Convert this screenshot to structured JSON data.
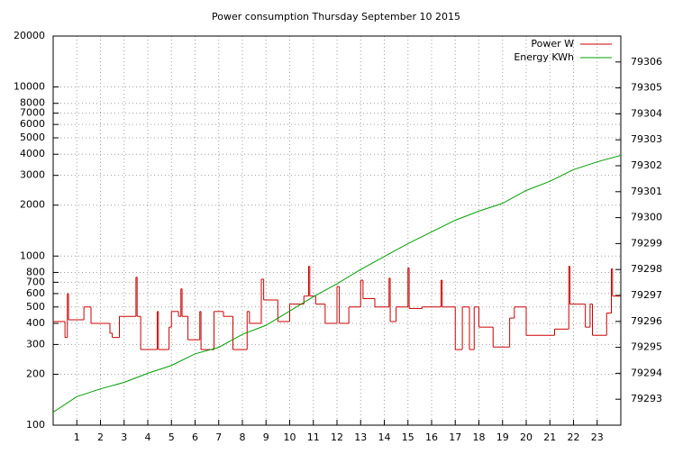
{
  "chart_data": {
    "type": "line",
    "title": "Power consumption Thursday September 10 2015",
    "xlim": [
      0,
      24
    ],
    "xticks": [
      1,
      2,
      3,
      4,
      5,
      6,
      7,
      8,
      9,
      10,
      11,
      12,
      13,
      14,
      15,
      16,
      17,
      18,
      19,
      20,
      21,
      22,
      23
    ],
    "ylim": [
      100,
      20000
    ],
    "log_y": true,
    "yticks": [
      100,
      200,
      300,
      400,
      500,
      600,
      700,
      800,
      1000,
      2000,
      3000,
      4000,
      5000,
      6000,
      7000,
      8000,
      10000,
      20000
    ],
    "y2lim": [
      79292,
      79307
    ],
    "y2ticks": [
      79293,
      79294,
      79295,
      79296,
      79297,
      79298,
      79299,
      79300,
      79301,
      79302,
      79303,
      79304,
      79305,
      79306
    ],
    "grid": true,
    "legend": "top-right",
    "series": [
      {
        "name": "Power W",
        "color": "#cc0000",
        "steps": true,
        "x": [
          0.0,
          0.5,
          0.6,
          0.65,
          1.3,
          1.6,
          2.4,
          2.5,
          2.8,
          3.5,
          3.55,
          3.7,
          4.4,
          4.45,
          4.9,
          5.0,
          5.3,
          5.4,
          5.45,
          5.7,
          6.2,
          6.25,
          6.8,
          7.2,
          7.6,
          8.2,
          8.3,
          8.8,
          8.9,
          9.5,
          10.0,
          10.6,
          10.8,
          10.85,
          11.1,
          11.5,
          12.0,
          12.1,
          12.5,
          13.0,
          13.1,
          13.6,
          14.2,
          14.25,
          14.5,
          15.0,
          15.05,
          15.6,
          16.4,
          16.45,
          17.0,
          17.3,
          17.6,
          17.8,
          18.0,
          18.6,
          19.3,
          19.5,
          20.0,
          21.2,
          21.8,
          21.85,
          22.5,
          22.7,
          22.8,
          23.4,
          23.6,
          23.65
        ],
        "values": [
          410,
          330,
          600,
          420,
          500,
          400,
          350,
          330,
          440,
          750,
          440,
          280,
          470,
          280,
          380,
          470,
          440,
          640,
          440,
          320,
          470,
          280,
          470,
          440,
          280,
          470,
          400,
          730,
          550,
          410,
          520,
          580,
          870,
          580,
          520,
          400,
          660,
          400,
          500,
          720,
          560,
          500,
          740,
          410,
          500,
          850,
          490,
          500,
          720,
          500,
          280,
          500,
          280,
          500,
          380,
          290,
          430,
          500,
          340,
          370,
          870,
          520,
          380,
          520,
          340,
          460,
          840,
          580
        ]
      },
      {
        "name": "Energy KWh",
        "color": "#00a000",
        "axis": "y2",
        "x": [
          0,
          1,
          2,
          3,
          4,
          5,
          6,
          7,
          8,
          9,
          10,
          11,
          12,
          13,
          14,
          15,
          16,
          17,
          18,
          19,
          20,
          21,
          22,
          23,
          24
        ],
        "values": [
          79292.5,
          79293.1,
          79293.4,
          79293.65,
          79294.0,
          79294.3,
          79294.75,
          79295.0,
          79295.5,
          79295.85,
          79296.4,
          79296.95,
          79297.45,
          79298.0,
          79298.5,
          79299.0,
          79299.45,
          79299.9,
          79300.25,
          79300.55,
          79301.05,
          79301.4,
          79301.85,
          79302.15,
          79302.4
        ]
      }
    ]
  }
}
